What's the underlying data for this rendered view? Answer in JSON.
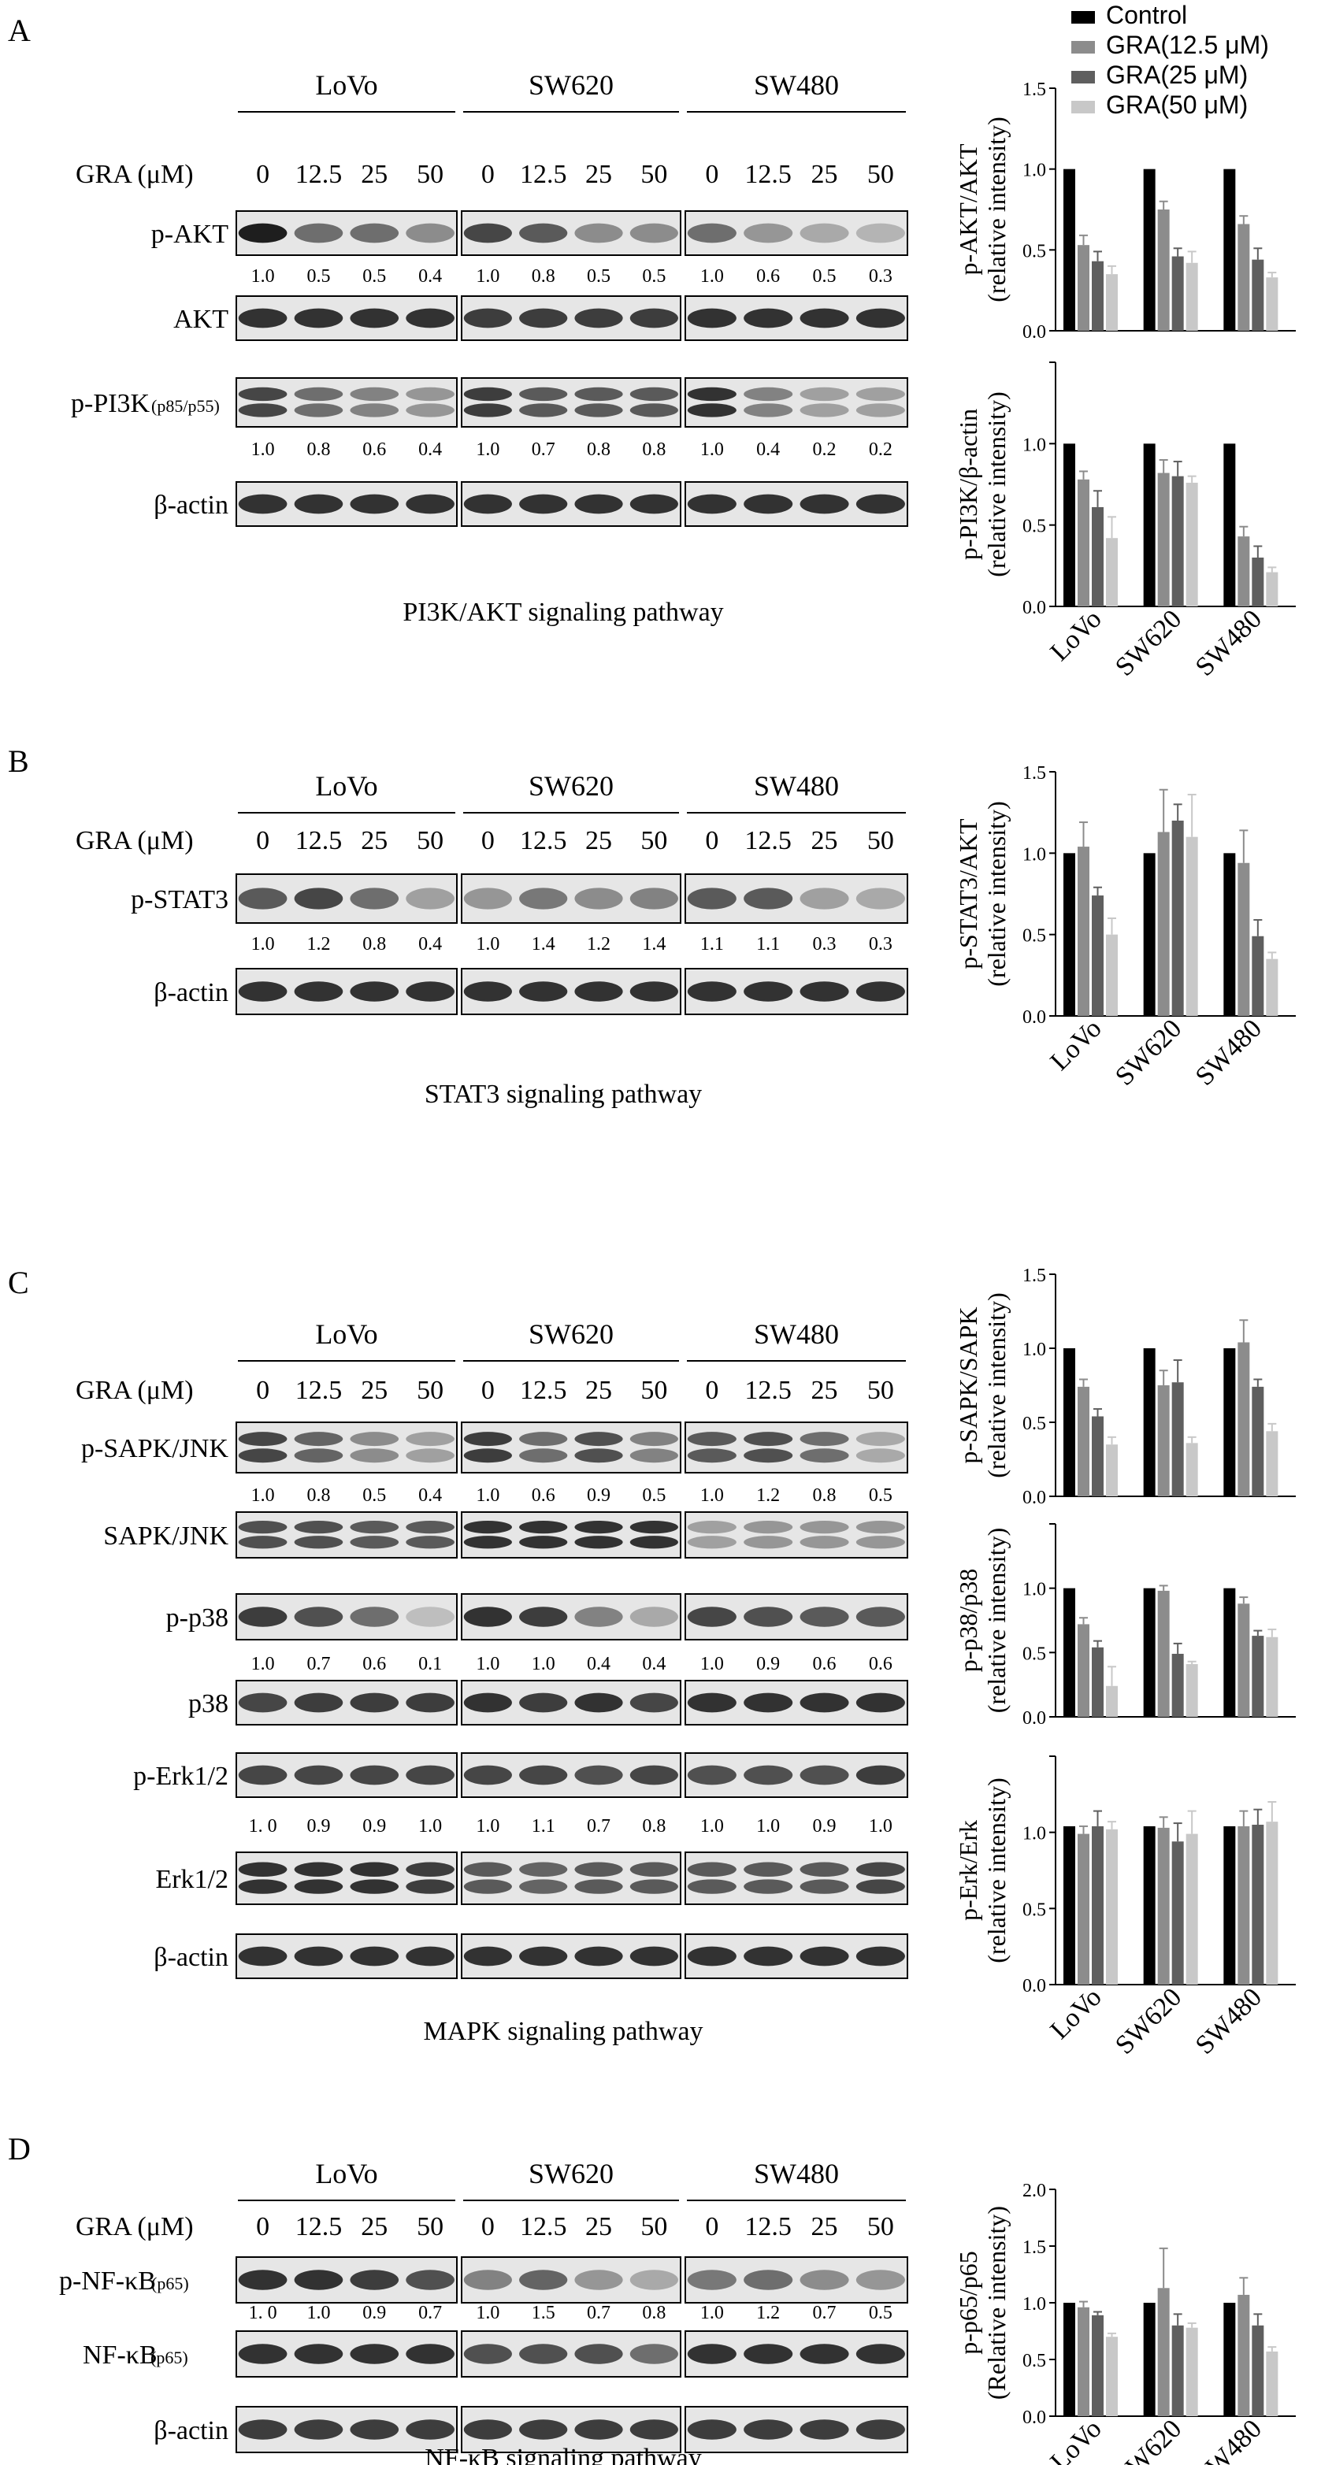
{
  "cell_lines": [
    "LoVo",
    "SW620",
    "SW480"
  ],
  "dose_header": "GRA (μM)",
  "doses": [
    "0",
    "12.5",
    "25",
    "50"
  ],
  "colors": {
    "control": "#000000",
    "gra_12_5": "#8c8c8c",
    "gra_25": "#5f5f5f",
    "gra_50": "#c8c8c8",
    "blot_bg": "#e6e6e6",
    "band": "#1e1e1e"
  },
  "legend": {
    "items": [
      {
        "label": "Control",
        "color_key": "control"
      },
      {
        "label": "GRA(12.5 μM)",
        "color_key": "gra_12_5"
      },
      {
        "label": "GRA(25 μM)",
        "color_key": "gra_25"
      },
      {
        "label": "GRA(50 μM)",
        "color_key": "gra_50"
      }
    ]
  },
  "panels": [
    {
      "letter": "A",
      "dose_label_text": "GRA (μM)",
      "pathway_label": "PI3K/AKT signaling pathway",
      "blots": [
        {
          "label": "p-AKT",
          "sub": "",
          "values": [
            [
              "1.0",
              "0.5",
              "0.5",
              "0.4"
            ],
            [
              "1.0",
              "0.8",
              "0.5",
              "0.5"
            ],
            [
              "1.0",
              "0.6",
              "0.5",
              "0.3"
            ]
          ],
          "band_strength": [
            [
              1.0,
              0.6,
              0.6,
              0.45
            ],
            [
              0.8,
              0.7,
              0.45,
              0.45
            ],
            [
              0.6,
              0.4,
              0.3,
              0.25
            ]
          ]
        },
        {
          "label": "AKT",
          "sub": "",
          "values": null,
          "band_strength": [
            [
              0.9,
              0.9,
              0.9,
              0.9
            ],
            [
              0.85,
              0.85,
              0.85,
              0.85
            ],
            [
              0.9,
              0.9,
              0.9,
              0.9
            ]
          ]
        },
        {
          "label": "p-PI3K",
          "sub": "(p85/p55)",
          "values": [
            [
              "1.0",
              "0.8",
              "0.6",
              "0.4"
            ],
            [
              "1.0",
              "0.7",
              "0.8",
              "0.8"
            ],
            [
              "1.0",
              "0.4",
              "0.2",
              "0.2"
            ]
          ],
          "band_strength": [
            [
              0.8,
              0.6,
              0.5,
              0.4
            ],
            [
              0.85,
              0.7,
              0.7,
              0.7
            ],
            [
              0.9,
              0.5,
              0.35,
              0.35
            ]
          ],
          "double": true
        },
        {
          "label": "β-actin",
          "sub": "",
          "values": null,
          "band_strength": [
            [
              0.9,
              0.9,
              0.9,
              0.9
            ],
            [
              0.9,
              0.9,
              0.9,
              0.9
            ],
            [
              0.9,
              0.9,
              0.9,
              0.9
            ]
          ]
        }
      ],
      "charts": [
        {
          "ylabel": "p-AKT/AKT",
          "ylabel2": "(relative intensity)",
          "ylim": [
            0,
            1.5
          ],
          "ticks": [
            "0.0",
            "0.5",
            "1.0",
            "1.5"
          ],
          "series": [
            [
              1.0,
              1.0,
              1.0
            ],
            [
              0.53,
              0.75,
              0.66
            ],
            [
              0.43,
              0.46,
              0.44
            ],
            [
              0.35,
              0.42,
              0.33
            ]
          ],
          "errors": [
            [
              0,
              0,
              0
            ],
            [
              0.06,
              0.05,
              0.05
            ],
            [
              0.06,
              0.05,
              0.07
            ],
            [
              0.05,
              0.07,
              0.03
            ]
          ],
          "show_xlabels": false
        },
        {
          "ylabel": "p-PI3K/β-actin",
          "ylabel2": "(relative intensity)",
          "ylim": [
            0,
            1.5
          ],
          "ticks": [
            "0.0",
            "0.5",
            "1.0",
            ""
          ],
          "series": [
            [
              1.0,
              1.0,
              1.0
            ],
            [
              0.78,
              0.82,
              0.43
            ],
            [
              0.61,
              0.8,
              0.3
            ],
            [
              0.42,
              0.76,
              0.21
            ]
          ],
          "errors": [
            [
              0,
              0,
              0
            ],
            [
              0.05,
              0.08,
              0.06
            ],
            [
              0.1,
              0.09,
              0.07
            ],
            [
              0.13,
              0.04,
              0.03
            ]
          ],
          "show_xlabels": true
        }
      ]
    },
    {
      "letter": "B",
      "dose_label_text": "GRA (μM)",
      "pathway_label": "STAT3 signaling pathway",
      "blots": [
        {
          "label": "p-STAT3",
          "sub": "",
          "values": [
            [
              "1.0",
              "1.2",
              "0.8",
              "0.4"
            ],
            [
              "1.0",
              "1.4",
              "1.2",
              "1.4"
            ],
            [
              "1.1",
              "1.1",
              "0.3",
              "0.3"
            ]
          ],
          "band_strength": [
            [
              0.7,
              0.8,
              0.6,
              0.35
            ],
            [
              0.4,
              0.55,
              0.45,
              0.5
            ],
            [
              0.7,
              0.7,
              0.35,
              0.3
            ]
          ]
        },
        {
          "label": "β-actin",
          "sub": "",
          "values": null,
          "band_strength": [
            [
              0.9,
              0.9,
              0.9,
              0.9
            ],
            [
              0.9,
              0.9,
              0.9,
              0.9
            ],
            [
              0.9,
              0.9,
              0.9,
              0.9
            ]
          ]
        }
      ],
      "charts": [
        {
          "ylabel": "p-STAT3/AKT",
          "ylabel2": "(relative intensity)",
          "ylim": [
            0,
            1.5
          ],
          "ticks": [
            "0.0",
            "0.5",
            "1.0",
            "1.5"
          ],
          "series": [
            [
              1.0,
              1.0,
              1.0
            ],
            [
              1.04,
              1.13,
              0.94
            ],
            [
              0.74,
              1.2,
              0.49
            ],
            [
              0.5,
              1.1,
              0.35
            ]
          ],
          "errors": [
            [
              0,
              0,
              0
            ],
            [
              0.15,
              0.26,
              0.2
            ],
            [
              0.05,
              0.1,
              0.1
            ],
            [
              0.1,
              0.26,
              0.04
            ]
          ],
          "show_xlabels": true
        }
      ]
    },
    {
      "letter": "C",
      "dose_label_text": "GRA (μM)",
      "pathway_label": "MAPK signaling pathway",
      "blots": [
        {
          "label": "p-SAPK/JNK",
          "sub": "",
          "values": [
            [
              "1.0",
              "0.8",
              "0.5",
              "0.4"
            ],
            [
              "1.0",
              "0.6",
              "0.9",
              "0.5"
            ],
            [
              "1.0",
              "1.2",
              "0.8",
              "0.5"
            ]
          ],
          "band_strength": [
            [
              0.8,
              0.65,
              0.45,
              0.35
            ],
            [
              0.85,
              0.6,
              0.75,
              0.5
            ],
            [
              0.7,
              0.75,
              0.6,
              0.3
            ]
          ],
          "double": true
        },
        {
          "label": "SAPK/JNK",
          "sub": "",
          "values": null,
          "band_strength": [
            [
              0.75,
              0.75,
              0.7,
              0.7
            ],
            [
              0.9,
              0.9,
              0.9,
              0.9
            ],
            [
              0.35,
              0.4,
              0.4,
              0.4
            ]
          ],
          "double": true
        },
        {
          "label": "p-p38",
          "sub": "",
          "values": [
            [
              "1.0",
              "0.7",
              "0.6",
              "0.1"
            ],
            [
              "1.0",
              "1.0",
              "0.4",
              "0.4"
            ],
            [
              "1.0",
              "0.9",
              "0.6",
              "0.6"
            ]
          ],
          "band_strength": [
            [
              0.85,
              0.75,
              0.6,
              0.2
            ],
            [
              0.9,
              0.85,
              0.5,
              0.3
            ],
            [
              0.8,
              0.75,
              0.7,
              0.7
            ]
          ]
        },
        {
          "label": "p38",
          "sub": "",
          "values": null,
          "band_strength": [
            [
              0.8,
              0.85,
              0.85,
              0.85
            ],
            [
              0.9,
              0.85,
              0.9,
              0.8
            ],
            [
              0.9,
              0.9,
              0.9,
              0.9
            ]
          ]
        },
        {
          "label": "p-Erk1/2",
          "sub": "",
          "values": [
            [
              "1. 0",
              "0.9",
              "0.9",
              "1.0"
            ],
            [
              "1.0",
              "1.1",
              "0.7",
              "0.8"
            ],
            [
              "1.0",
              "1.0",
              "0.9",
              "1.0"
            ]
          ],
          "band_strength": [
            [
              0.8,
              0.8,
              0.8,
              0.8
            ],
            [
              0.8,
              0.8,
              0.75,
              0.8
            ],
            [
              0.75,
              0.75,
              0.75,
              0.85
            ]
          ]
        },
        {
          "label": "Erk1/2",
          "sub": "",
          "values": null,
          "band_strength": [
            [
              0.9,
              0.9,
              0.9,
              0.85
            ],
            [
              0.7,
              0.65,
              0.7,
              0.7
            ],
            [
              0.7,
              0.7,
              0.7,
              0.8
            ]
          ],
          "double": true
        },
        {
          "label": "β-actin",
          "sub": "",
          "values": null,
          "band_strength": [
            [
              0.9,
              0.9,
              0.9,
              0.9
            ],
            [
              0.9,
              0.9,
              0.9,
              0.9
            ],
            [
              0.9,
              0.9,
              0.9,
              0.9
            ]
          ]
        }
      ],
      "charts": [
        {
          "ylabel": "p-SAPK/SAPK",
          "ylabel2": "(relative intensity)",
          "ylim": [
            0,
            1.5
          ],
          "ticks": [
            "0.0",
            "0.5",
            "1.0",
            "1.5"
          ],
          "series": [
            [
              1.0,
              1.0,
              1.0
            ],
            [
              0.74,
              0.75,
              1.04
            ],
            [
              0.54,
              0.77,
              0.74
            ],
            [
              0.35,
              0.36,
              0.44
            ]
          ],
          "errors": [
            [
              0,
              0,
              0
            ],
            [
              0.05,
              0.1,
              0.15
            ],
            [
              0.05,
              0.15,
              0.05
            ],
            [
              0.05,
              0.04,
              0.05
            ]
          ],
          "show_xlabels": false
        },
        {
          "ylabel": "p-p38/p38",
          "ylabel2": "(relative intensity)",
          "ylim": [
            0,
            1.5
          ],
          "ticks": [
            "0.0",
            "0.5",
            "1.0",
            ""
          ],
          "series": [
            [
              1.0,
              1.0,
              1.0
            ],
            [
              0.72,
              0.98,
              0.88
            ],
            [
              0.54,
              0.49,
              0.63
            ],
            [
              0.24,
              0.41,
              0.62
            ]
          ],
          "errors": [
            [
              0,
              0,
              0
            ],
            [
              0.05,
              0.04,
              0.05
            ],
            [
              0.05,
              0.08,
              0.04
            ],
            [
              0.15,
              0.02,
              0.06
            ]
          ],
          "show_xlabels": false
        },
        {
          "ylabel": "p-Erk/Erk",
          "ylabel2": "(relative intensity)",
          "ylim": [
            0,
            1.5
          ],
          "ticks": [
            "0.0",
            "0.5",
            "1.0",
            ""
          ],
          "series": [
            [
              1.04,
              1.04,
              1.04
            ],
            [
              0.99,
              1.03,
              1.04
            ],
            [
              1.04,
              0.94,
              1.05
            ],
            [
              1.02,
              0.99,
              1.07
            ]
          ],
          "errors": [
            [
              0,
              0,
              0
            ],
            [
              0.05,
              0.07,
              0.1
            ],
            [
              0.1,
              0.12,
              0.1
            ],
            [
              0.05,
              0.15,
              0.13
            ]
          ],
          "show_xlabels": true
        }
      ]
    },
    {
      "letter": "D",
      "dose_label_text": "GRA (μM)",
      "pathway_label": "NF-κB signaling pathway",
      "blots": [
        {
          "label": "p-NF-κB",
          "sub": "(p65)",
          "values": [
            [
              "1. 0",
              "1.0",
              "0.9",
              "0.7"
            ],
            [
              "1.0",
              "1.5",
              "0.7",
              "0.8"
            ],
            [
              "1.0",
              "1.2",
              "0.7",
              "0.5"
            ]
          ],
          "band_strength": [
            [
              0.9,
              0.9,
              0.85,
              0.75
            ],
            [
              0.5,
              0.65,
              0.4,
              0.3
            ],
            [
              0.55,
              0.6,
              0.45,
              0.4
            ]
          ]
        },
        {
          "label": "NF-κB",
          "sub": "(p65)",
          "values": null,
          "band_strength": [
            [
              0.9,
              0.9,
              0.9,
              0.9
            ],
            [
              0.75,
              0.75,
              0.75,
              0.6
            ],
            [
              0.9,
              0.9,
              0.9,
              0.9
            ]
          ]
        },
        {
          "label": "β-actin",
          "sub": "",
          "values": null,
          "band_strength": [
            [
              0.85,
              0.85,
              0.85,
              0.85
            ],
            [
              0.85,
              0.85,
              0.85,
              0.85
            ],
            [
              0.85,
              0.85,
              0.85,
              0.85
            ]
          ]
        }
      ],
      "charts": [
        {
          "ylabel": "p-p65/p65",
          "ylabel2": "(Relative intensity)",
          "ylim": [
            0,
            2.0
          ],
          "ticks": [
            "0.0",
            "0.5",
            "1.0",
            "1.5",
            "2.0"
          ],
          "series": [
            [
              1.0,
              1.0,
              1.0
            ],
            [
              0.96,
              1.13,
              1.07
            ],
            [
              0.89,
              0.8,
              0.8
            ],
            [
              0.7,
              0.78,
              0.57
            ]
          ],
          "errors": [
            [
              0,
              0,
              0
            ],
            [
              0.05,
              0.35,
              0.15
            ],
            [
              0.03,
              0.1,
              0.1
            ],
            [
              0.03,
              0.04,
              0.04
            ]
          ],
          "show_xlabels": true
        }
      ]
    }
  ]
}
